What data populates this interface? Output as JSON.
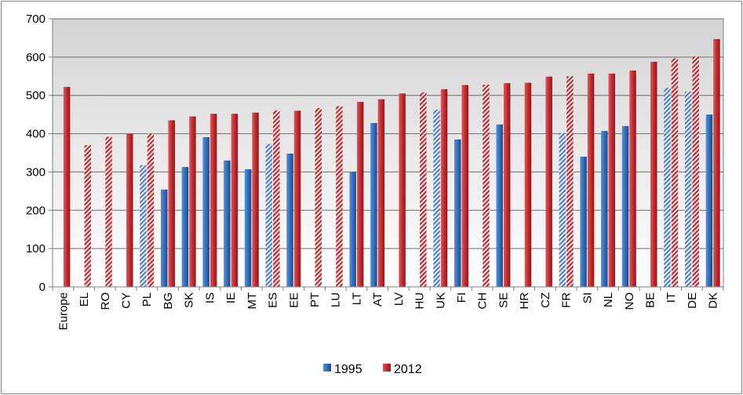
{
  "chart_data": {
    "type": "bar",
    "title": "",
    "xlabel": "",
    "ylabel": "",
    "ylim": [
      0,
      700
    ],
    "yticks": [
      0,
      100,
      200,
      300,
      400,
      500,
      600,
      700
    ],
    "grid": true,
    "legend_position": "bottom",
    "categories": [
      "Europe",
      "EL",
      "RO",
      "CY",
      "PL",
      "BG",
      "SK",
      "IS",
      "IE",
      "MT",
      "ES",
      "EE",
      "PT",
      "LU",
      "LT",
      "AT",
      "LV",
      "HU",
      "UK",
      "FI",
      "CH",
      "SE",
      "HR",
      "CZ",
      "FR",
      "SI",
      "NL",
      "NO",
      "BE",
      "IT",
      "DE",
      "DK"
    ],
    "series": [
      {
        "name": "1995",
        "color": "#2e6bb8",
        "values": [
          null,
          null,
          null,
          null,
          318,
          254,
          313,
          391,
          330,
          307,
          373,
          348,
          null,
          null,
          300,
          428,
          null,
          null,
          463,
          385,
          null,
          424,
          null,
          null,
          402,
          340,
          407,
          420,
          null,
          520,
          510,
          450
        ],
        "hatched": [
          false,
          false,
          false,
          false,
          true,
          false,
          false,
          false,
          false,
          false,
          true,
          false,
          false,
          false,
          false,
          false,
          false,
          false,
          true,
          false,
          false,
          false,
          false,
          false,
          true,
          false,
          false,
          false,
          false,
          true,
          true,
          false
        ]
      },
      {
        "name": "2012",
        "color": "#c0272d",
        "values": [
          522,
          370,
          392,
          400,
          400,
          435,
          445,
          452,
          452,
          455,
          461,
          460,
          467,
          472,
          483,
          490,
          505,
          508,
          516,
          527,
          528,
          532,
          533,
          549,
          550,
          557,
          557,
          565,
          588,
          597,
          602,
          647
        ],
        "hatched": [
          false,
          true,
          true,
          false,
          true,
          false,
          false,
          false,
          false,
          false,
          true,
          false,
          true,
          true,
          false,
          false,
          false,
          true,
          false,
          false,
          true,
          false,
          false,
          false,
          true,
          false,
          false,
          false,
          false,
          true,
          true,
          false
        ]
      }
    ]
  }
}
